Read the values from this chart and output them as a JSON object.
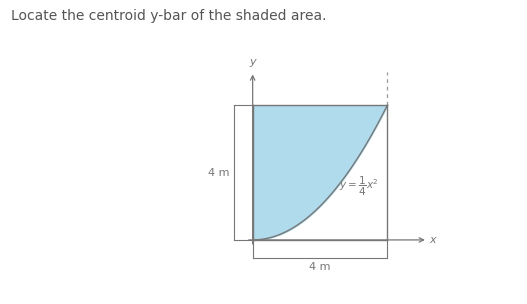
{
  "title_text": "Locate the centroid y-bar of the shaded area.",
  "title_fontsize": 10,
  "title_color": "#555555",
  "fig_width": 5.27,
  "fig_height": 3.04,
  "dpi": 100,
  "bg_color": "#ffffff",
  "shade_color": "#a8d8ea",
  "shade_alpha": 0.9,
  "curve_color": "#777777",
  "axis_color": "#777777",
  "dim_color": "#777777",
  "dashed_color": "#999999",
  "label_4m_left": "4 m",
  "label_4m_bottom": "4 m",
  "axis_label_x": "x",
  "axis_label_y": "y"
}
